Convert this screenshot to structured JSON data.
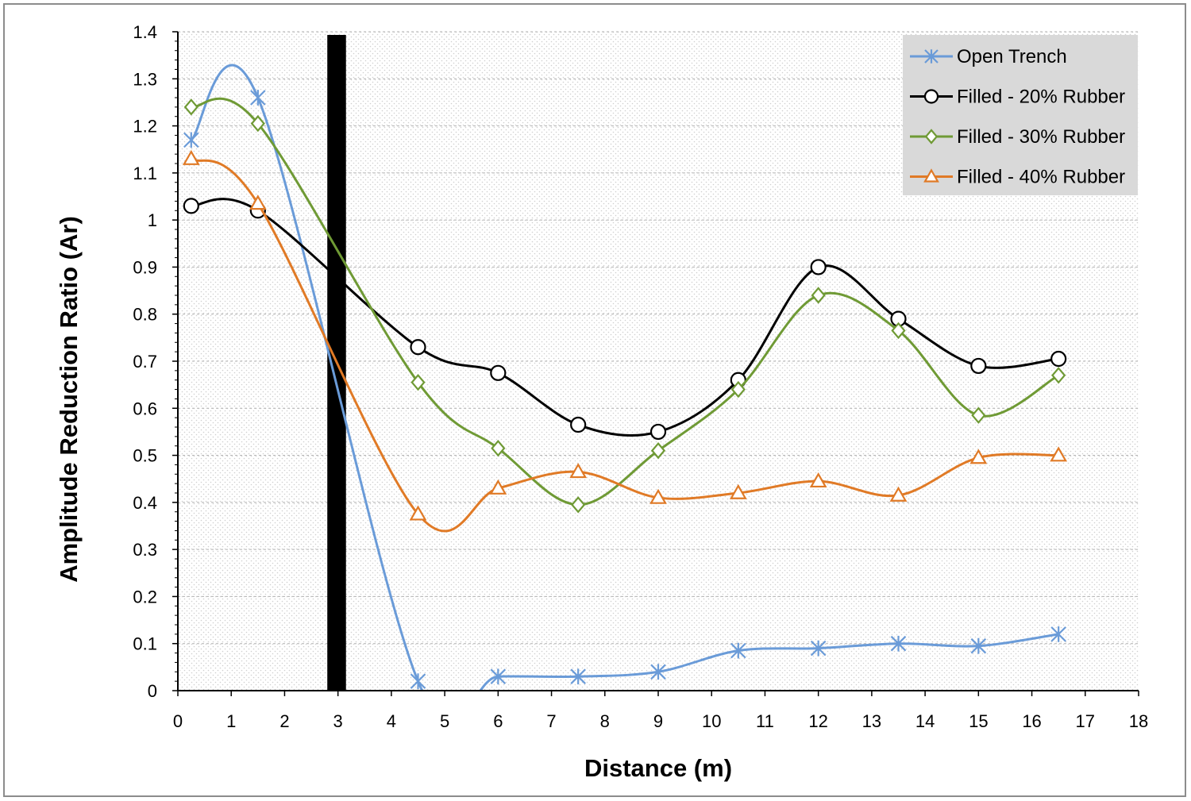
{
  "chart_data": {
    "type": "line",
    "title": "",
    "xlabel": "Distance (m)",
    "ylabel": "Amplitude Reduction Ratio (Ar)",
    "xlim": [
      0,
      18
    ],
    "ylim": [
      0,
      1.4
    ],
    "xticks": [
      "0",
      "1",
      "2",
      "3",
      "4",
      "5",
      "6",
      "7",
      "8",
      "9",
      "10",
      "11",
      "12",
      "13",
      "14",
      "15",
      "16",
      "17",
      "18"
    ],
    "yticks": [
      "0",
      "0.1",
      "0.2",
      "0.3",
      "0.4",
      "0.5",
      "0.6",
      "0.7",
      "0.8",
      "0.9",
      "1",
      "1.1",
      "1.2",
      "1.3",
      "1.4"
    ],
    "grid": true,
    "legend_position": "top-right",
    "trench": {
      "x_start": 2.8,
      "x_end": 3.15,
      "color": "#000000"
    },
    "series": [
      {
        "name": "Open Trench",
        "color": "#6a9bd8",
        "marker": "star",
        "x": [
          0.25,
          1.5,
          4.5,
          6,
          7.5,
          9,
          10.5,
          12,
          13.5,
          15,
          16.5
        ],
        "y": [
          1.17,
          1.26,
          0.02,
          0.03,
          0.03,
          0.04,
          0.085,
          0.09,
          0.1,
          0.095,
          0.12
        ]
      },
      {
        "name": "Filled - 20% Rubber",
        "color": "#000000",
        "marker": "circle",
        "x": [
          0.25,
          1.5,
          4.5,
          6,
          7.5,
          9,
          10.5,
          12,
          13.5,
          15,
          16.5
        ],
        "y": [
          1.03,
          1.02,
          0.73,
          0.675,
          0.565,
          0.55,
          0.66,
          0.9,
          0.79,
          0.69,
          0.705
        ]
      },
      {
        "name": "Filled - 30% Rubber",
        "color": "#6f9a35",
        "marker": "diamond",
        "x": [
          0.25,
          1.5,
          4.5,
          6,
          7.5,
          9,
          10.5,
          12,
          13.5,
          15,
          16.5
        ],
        "y": [
          1.24,
          1.205,
          0.655,
          0.515,
          0.395,
          0.51,
          0.64,
          0.84,
          0.765,
          0.585,
          0.67
        ]
      },
      {
        "name": "Filled - 40% Rubber",
        "color": "#e07a26",
        "marker": "triangle",
        "x": [
          0.25,
          1.5,
          4.5,
          6,
          7.5,
          9,
          10.5,
          12,
          13.5,
          15,
          16.5
        ],
        "y": [
          1.13,
          1.035,
          0.375,
          0.43,
          0.465,
          0.41,
          0.42,
          0.445,
          0.415,
          0.495,
          0.5
        ]
      }
    ]
  }
}
